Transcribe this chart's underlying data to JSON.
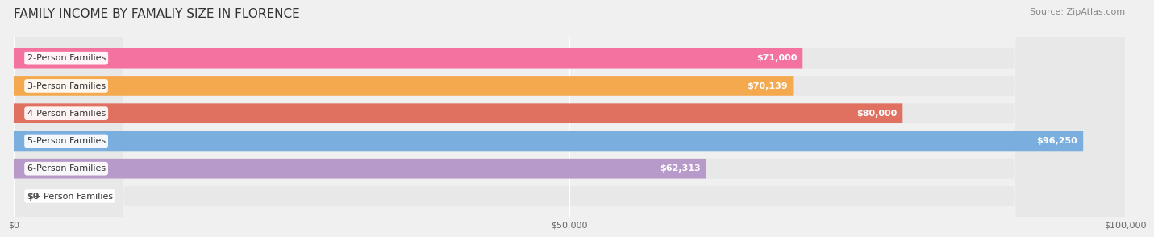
{
  "title": "FAMILY INCOME BY FAMALIY SIZE IN FLORENCE",
  "source": "Source: ZipAtlas.com",
  "categories": [
    "2-Person Families",
    "3-Person Families",
    "4-Person Families",
    "5-Person Families",
    "6-Person Families",
    "7+ Person Families"
  ],
  "values": [
    71000,
    70139,
    80000,
    96250,
    62313,
    0
  ],
  "bar_colors": [
    "#f472a0",
    "#f5a94e",
    "#e07060",
    "#7aaede",
    "#b89aca",
    "#7dd4d8"
  ],
  "label_colors": [
    "#ffffff",
    "#ffffff",
    "#ffffff",
    "#ffffff",
    "#ffffff",
    "#555555"
  ],
  "value_labels": [
    "$71,000",
    "$70,139",
    "$80,000",
    "$96,250",
    "$62,313",
    "$0"
  ],
  "xlim": [
    0,
    100000
  ],
  "xticks": [
    0,
    50000,
    100000
  ],
  "xticklabels": [
    "$0",
    "$50,000",
    "$100,000"
  ],
  "background_color": "#f0f0f0",
  "bar_background_color": "#e8e8e8",
  "title_fontsize": 11,
  "source_fontsize": 8,
  "label_fontsize": 8,
  "value_fontsize": 8
}
